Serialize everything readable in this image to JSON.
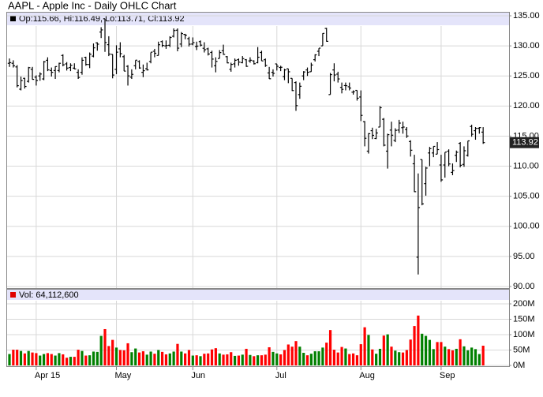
{
  "chart_data": {
    "type": "ohlc",
    "title": "AAPL - Apple Inc - Daily OHLC Chart",
    "price_legend": "Op:115.66, Hi:116.49, Lo:113.71, Cl:113.92",
    "volume_legend": "Vol: 64,112,600",
    "categories": [
      null,
      null,
      null,
      null,
      null,
      null,
      null,
      "Apr 15",
      null,
      null,
      null,
      null,
      null,
      null,
      null,
      null,
      null,
      null,
      null,
      null,
      null,
      null,
      null,
      null,
      null,
      null,
      null,
      null,
      "May",
      null,
      null,
      null,
      null,
      null,
      null,
      null,
      null,
      null,
      null,
      null,
      null,
      null,
      null,
      null,
      null,
      null,
      null,
      null,
      "Jun",
      null,
      null,
      null,
      null,
      null,
      null,
      null,
      null,
      null,
      null,
      null,
      null,
      null,
      null,
      null,
      null,
      null,
      null,
      null,
      null,
      null,
      "Jul",
      null,
      null,
      null,
      null,
      null,
      null,
      null,
      null,
      null,
      null,
      null,
      null,
      null,
      null,
      null,
      null,
      null,
      null,
      null,
      null,
      null,
      "Aug",
      null,
      null,
      null,
      null,
      null,
      null,
      null,
      null,
      null,
      null,
      null,
      null,
      null,
      null,
      null,
      null,
      null,
      null,
      null,
      null,
      "Sep",
      null,
      null,
      null,
      null,
      null,
      null,
      null,
      null,
      null,
      null,
      null
    ],
    "open": [
      127.1,
      127.1,
      126.5,
      122.8,
      124.6,
      124.1,
      126.1,
      124.8,
      125.0,
      124.5,
      127.6,
      125.9,
      125.9,
      125.9,
      128.4,
      127.0,
      126.4,
      126.3,
      125.6,
      125.6,
      128.1,
      126.9,
      128.3,
      130.5,
      132.3,
      134.5,
      130.2,
      128.6,
      126.1,
      129.5,
      128.2,
      126.6,
      124.8,
      126.7,
      127.4,
      125.6,
      126.2,
      127.4,
      129.1,
      128.4,
      130.7,
      130.0,
      130.1,
      131.6,
      132.6,
      130.3,
      131.9,
      131.2,
      130.3,
      129.9,
      130.7,
      129.6,
      129.5,
      128.9,
      126.7,
      127.9,
      129.2,
      128.2,
      126.1,
      127.0,
      127.7,
      127.2,
      127.7,
      127.5,
      127.5,
      127.2,
      128.9,
      127.7,
      125.5,
      125.6,
      127.0,
      126.4,
      124.9,
      126.2,
      124.6,
      123.9,
      121.9,
      125.0,
      126.0,
      125.7,
      127.7,
      129.1,
      130.0,
      132.9,
      121.9,
      126.0,
      125.3,
      123.1,
      123.4,
      123.2,
      122.3,
      122.6,
      121.5,
      117.4,
      112.5,
      115.9,
      114.6,
      116.5,
      117.8,
      112.5,
      116.0,
      114.3,
      116.0,
      116.4,
      116.1,
      114.1,
      110.4,
      94.87,
      111.1,
      107.1,
      112.2,
      112.2,
      112.0,
      110.2,
      110.2,
      112.5,
      108.97,
      111.8,
      113.8,
      110.3,
      111.8,
      116.6,
      115.9,
      116.3,
      115.66
    ],
    "high": [
      127.9,
      127.6,
      126.8,
      124.9,
      124.7,
      126.5,
      126.5,
      125.1,
      125.6,
      127.5,
      128.1,
      126.4,
      126.6,
      127.2,
      128.6,
      127.3,
      127.1,
      127.1,
      126.1,
      128.1,
      128.2,
      128.9,
      130.4,
      130.6,
      133.1,
      134.5,
      131.6,
      128.6,
      130.1,
      130.6,
      128.5,
      126.8,
      126.1,
      127.6,
      127.6,
      126.9,
      127.2,
      128.9,
      129.5,
      130.7,
      130.9,
      130.9,
      131.6,
      132.9,
      132.9,
      132.3,
      132.0,
      131.5,
      131.4,
      130.7,
      130.9,
      130.6,
      129.7,
      129.2,
      128.1,
      129.3,
      130.2,
      128.3,
      127.2,
      127.9,
      127.9,
      128.3,
      127.8,
      128.1,
      127.6,
      129.8,
      129.2,
      127.9,
      126.5,
      126.1,
      127.0,
      126.7,
      126.2,
      126.2,
      124.6,
      124.1,
      123.9,
      125.8,
      126.4,
      127.2,
      128.6,
      129.6,
      132.1,
      133.0,
      125.5,
      127.1,
      125.7,
      123.9,
      123.9,
      123.9,
      122.6,
      122.6,
      122.6,
      117.5,
      115.5,
      116.4,
      116.2,
      119.99,
      118.0,
      115.4,
      117.4,
      116.3,
      117.7,
      117.4,
      116.5,
      114.3,
      111.9,
      108.8,
      111.1,
      109.9,
      113.2,
      113.3,
      114.0,
      111.9,
      112.3,
      112.8,
      110.45,
      112.6,
      114.0,
      113.3,
      114.2,
      116.9,
      116.5,
      116.5,
      116.49
    ],
    "low": [
      126.5,
      126.4,
      123.1,
      122.6,
      122.9,
      123.9,
      124.4,
      123.4,
      124.2,
      124.3,
      125.8,
      124.9,
      124.5,
      125.6,
      126.6,
      125.9,
      125.8,
      126.1,
      124.5,
      125.2,
      126.7,
      126.3,
      128.1,
      129.2,
      131.3,
      129.0,
      128.3,
      124.6,
      125.3,
      128.1,
      125.8,
      123.4,
      124.5,
      126.1,
      126.2,
      124.8,
      125.9,
      127.1,
      128.1,
      128.4,
      129.8,
      129.5,
      129.8,
      131.4,
      129.1,
      129.8,
      131.1,
      129.9,
      130.1,
      129.3,
      129.9,
      128.9,
      128.4,
      126.4,
      125.6,
      127.9,
      128.5,
      127.1,
      125.7,
      126.4,
      126.7,
      127.1,
      126.5,
      127.2,
      126.9,
      127.1,
      127.5,
      126.5,
      124.5,
      124.9,
      125.9,
      125.8,
      124.3,
      123.8,
      122.5,
      119.2,
      121.2,
      124.3,
      125.0,
      125.7,
      127.4,
      128.3,
      130.0,
      130.7,
      121.9,
      124.1,
      123.9,
      122.1,
      122.6,
      122.6,
      121.9,
      120.9,
      117.5,
      113.3,
      112.1,
      114.5,
      114.5,
      116.5,
      113.3,
      109.6,
      113.3,
      114.0,
      115.5,
      115.4,
      114.7,
      111.6,
      105.7,
      92.0,
      103.5,
      105.1,
      110.0,
      111.5,
      112.0,
      107.4,
      108.1,
      110.0,
      108.5,
      110.7,
      109.8,
      109.9,
      111.6,
      114.9,
      114.4,
      115.4,
      113.71
    ],
    "close": [
      127.21,
      126.69,
      123.38,
      124.24,
      123.25,
      126.37,
      124.43,
      124.25,
      125.32,
      127.35,
      126.01,
      125.6,
      126.56,
      127.1,
      126.85,
      126.3,
      126.78,
      126.17,
      124.75,
      127.6,
      126.91,
      128.62,
      129.67,
      130.28,
      132.65,
      130.56,
      128.64,
      125.15,
      128.95,
      128.7,
      125.8,
      125.01,
      125.26,
      127.62,
      126.32,
      125.87,
      126.01,
      128.95,
      128.77,
      130.19,
      130.07,
      130.06,
      131.39,
      132.54,
      129.62,
      132.04,
      131.78,
      130.28,
      130.54,
      129.96,
      130.12,
      129.36,
      128.65,
      127.8,
      127.42,
      128.88,
      128.59,
      127.17,
      126.92,
      127.6,
      127.3,
      127.88,
      126.6,
      127.61,
      127.03,
      128.11,
      127.5,
      126.75,
      124.53,
      125.43,
      126.6,
      126.44,
      126.0,
      125.69,
      122.57,
      120.07,
      123.28,
      125.66,
      125.61,
      126.82,
      128.51,
      129.62,
      132.07,
      130.75,
      125.22,
      125.16,
      124.5,
      122.77,
      123.38,
      122.99,
      122.37,
      121.3,
      118.44,
      114.64,
      115.4,
      115.13,
      115.52,
      119.72,
      113.49,
      115.24,
      115.15,
      115.96,
      117.16,
      116.5,
      115.01,
      112.65,
      105.76,
      103.12,
      103.74,
      109.69,
      112.92,
      113.29,
      112.76,
      107.72,
      112.34,
      110.37,
      109.27,
      112.31,
      110.15,
      112.57,
      114.21,
      115.31,
      116.28,
      116.41,
      113.92
    ],
    "volume": [
      37,
      51,
      51,
      47,
      39,
      47,
      42,
      40,
      32,
      37,
      40,
      37,
      32,
      40,
      36,
      25,
      28,
      28,
      51,
      47,
      32,
      33,
      45,
      44,
      96,
      118,
      63,
      83,
      58,
      50,
      49,
      72,
      43,
      55,
      42,
      46,
      35,
      45,
      38,
      50,
      44,
      36,
      39,
      45,
      70,
      45,
      39,
      50,
      32,
      33,
      30,
      38,
      39,
      52,
      56,
      39,
      35,
      36,
      43,
      31,
      32,
      35,
      54,
      34,
      30,
      33,
      33,
      35,
      59,
      44,
      39,
      36,
      50,
      68,
      61,
      79,
      61,
      41,
      33,
      38,
      46,
      46,
      58,
      74,
      115,
      51,
      42,
      60,
      55,
      37,
      39,
      33,
      69,
      124,
      99,
      52,
      38,
      54,
      97,
      101,
      61,
      48,
      43,
      42,
      50,
      84,
      128,
      162,
      103,
      96,
      83,
      53,
      76,
      76,
      61,
      53,
      49,
      54,
      85,
      62,
      49,
      58,
      53,
      37,
      64.1126
    ],
    "ylim": [
      90,
      135
    ],
    "yticks": [
      {
        "value": 90,
        "label": "90.00"
      },
      {
        "value": 95,
        "label": "95.00"
      },
      {
        "value": 100,
        "label": "100.00"
      },
      {
        "value": 105,
        "label": "105.00"
      },
      {
        "value": 110,
        "label": "110.00"
      },
      {
        "value": 115,
        "label": "115.00"
      },
      {
        "value": 120,
        "label": "120.00"
      },
      {
        "value": 125,
        "label": "125.00"
      },
      {
        "value": 130,
        "label": "130.00"
      },
      {
        "value": 135,
        "label": "135.00"
      }
    ],
    "volume_ylim": [
      0,
      200
    ],
    "volume_yticks": [
      {
        "value": 0,
        "label": "0M"
      },
      {
        "value": 50,
        "label": "50M"
      },
      {
        "value": 100,
        "label": "100M"
      },
      {
        "value": 150,
        "label": "150M"
      },
      {
        "value": 200,
        "label": "200M"
      }
    ],
    "color": "#000000",
    "up_color": "#008000",
    "down_color": "#ff0000",
    "grid": true
  }
}
